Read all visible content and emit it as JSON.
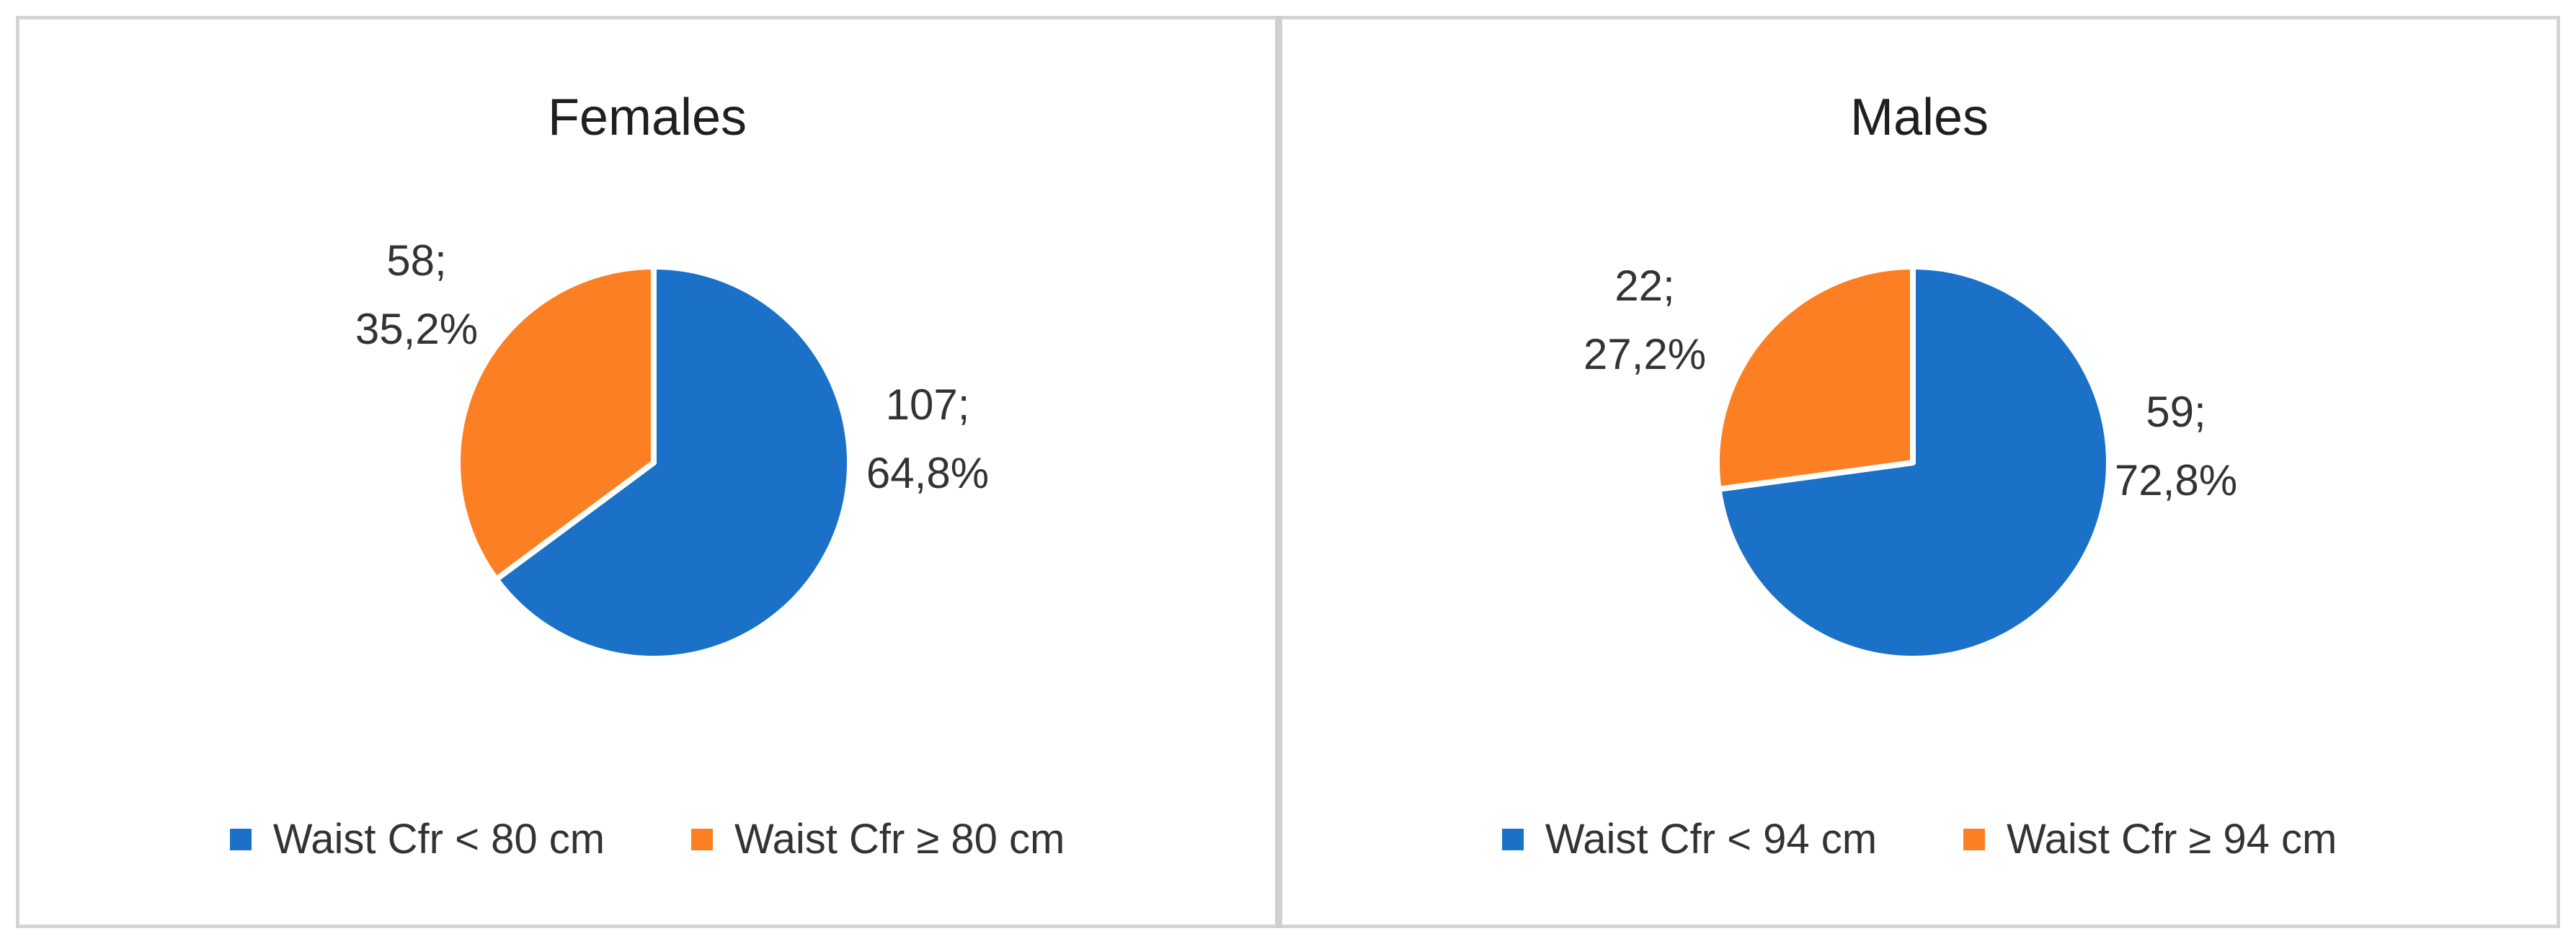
{
  "chart_data": [
    {
      "type": "pie",
      "title": "Females",
      "slices": [
        {
          "label": "Waist Cfr < 80 cm",
          "value": 107,
          "percent": "64,8%",
          "data_label_line1": "107;",
          "data_label_line2": "64,8%",
          "color": "#1a71c7"
        },
        {
          "label": "Waist Cfr ≥ 80 cm",
          "value": 58,
          "percent": "35,2%",
          "data_label_line1": "58;",
          "data_label_line2": "35,2%",
          "color": "#fd7f23"
        }
      ],
      "legend_position": "bottom"
    },
    {
      "type": "pie",
      "title": "Males",
      "slices": [
        {
          "label": "Waist Cfr < 94 cm",
          "value": 59,
          "percent": "72,8%",
          "data_label_line1": "59;",
          "data_label_line2": "72,8%",
          "color": "#1a71c7"
        },
        {
          "label": "Waist Cfr ≥ 94 cm",
          "value": 22,
          "percent": "27,2%",
          "data_label_line1": "22;",
          "data_label_line2": "27,2%",
          "color": "#fd7f23"
        }
      ],
      "legend_position": "bottom"
    }
  ]
}
